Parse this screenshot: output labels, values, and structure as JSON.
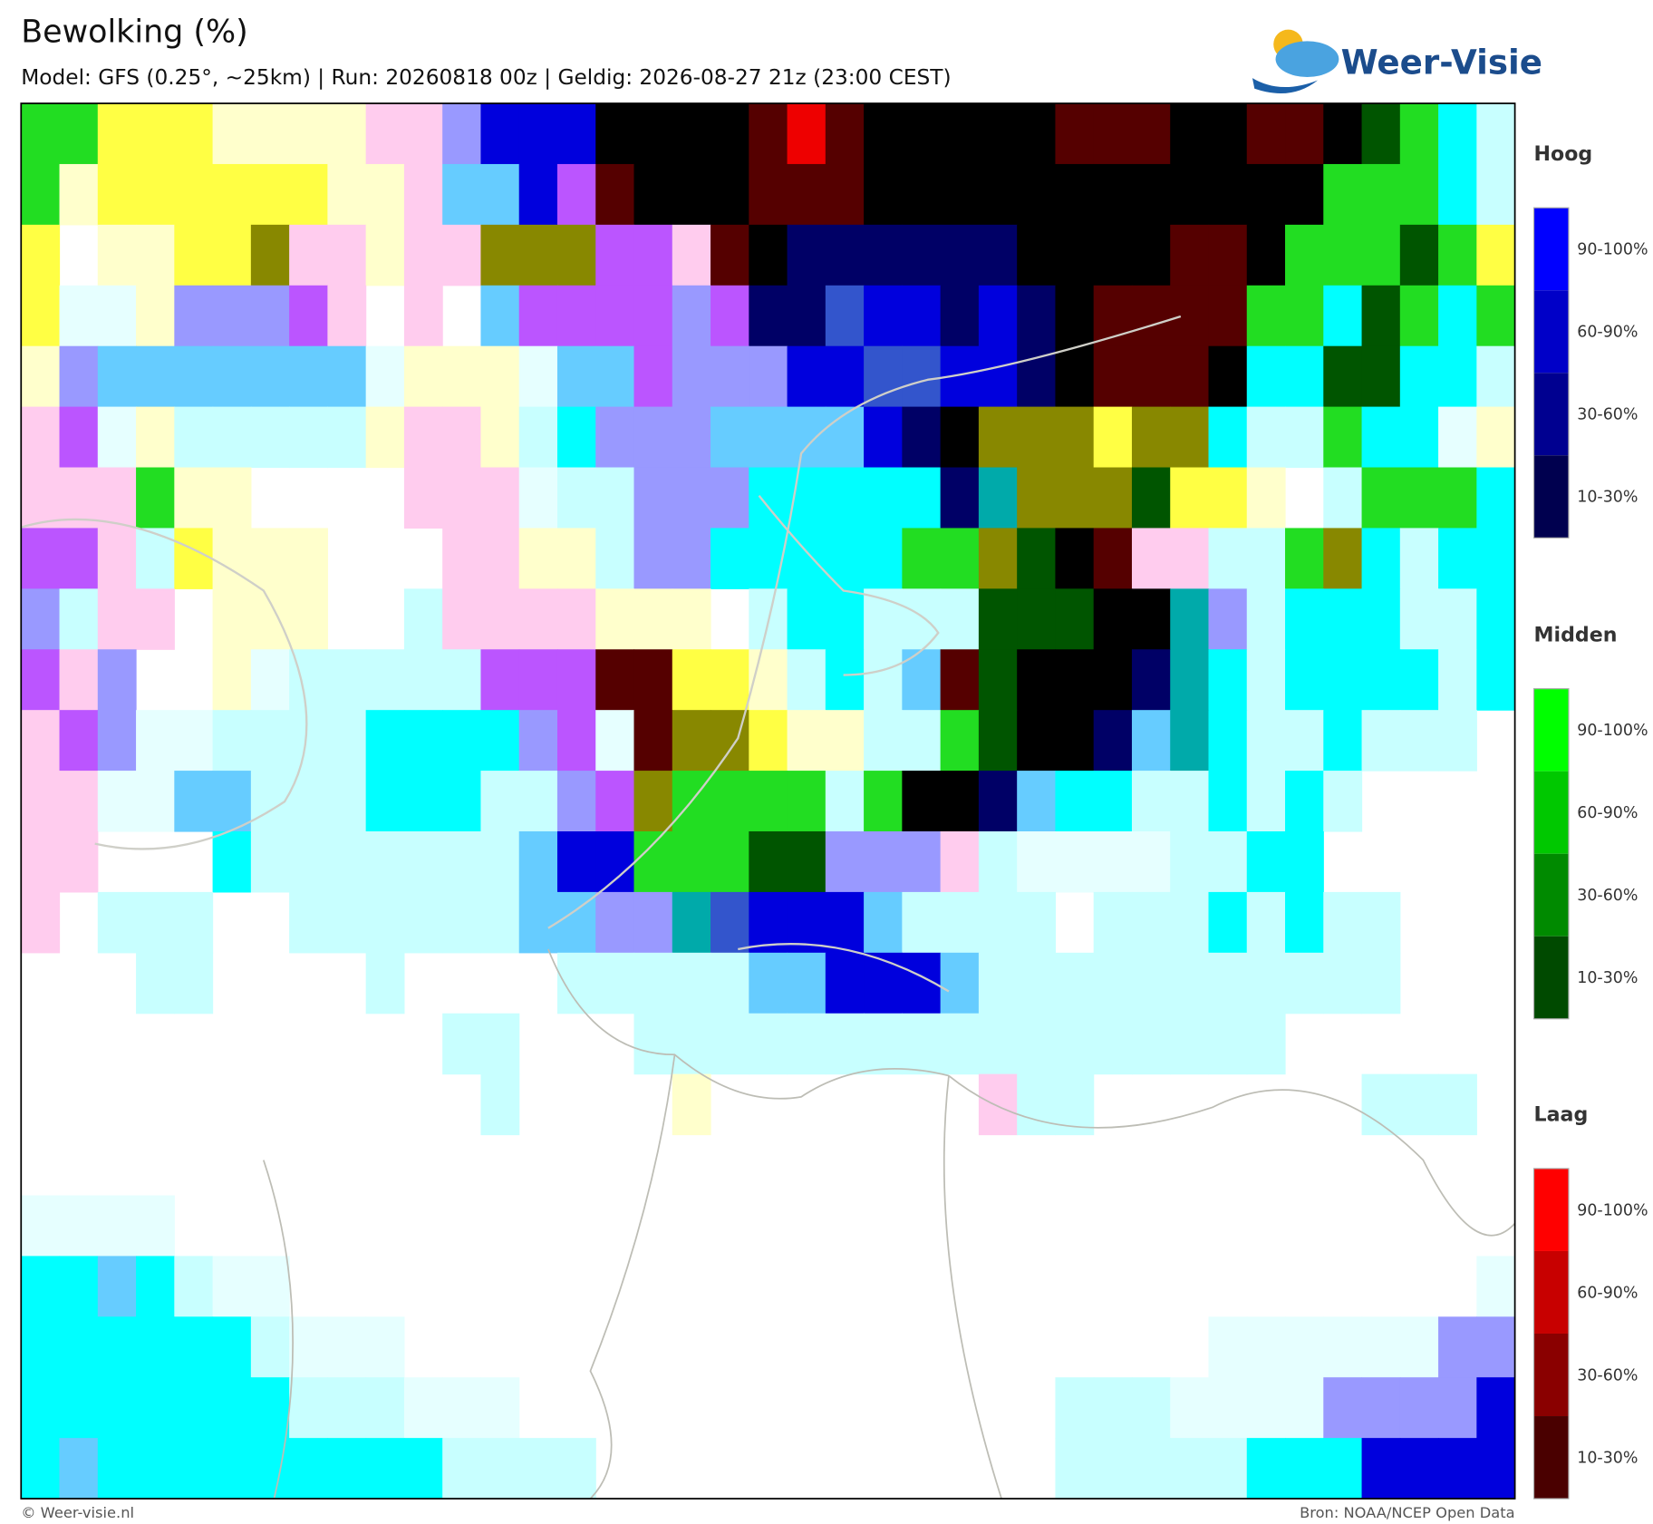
{
  "header": {
    "title": "Bewolking (%)",
    "subtitle": "Model: GFS (0.25°, ~25km)  |  Run: 20260818 00z  |  Geldig: 2026-08-27 21z (23:00 CEST)",
    "logo": "Weer-Visie"
  },
  "legend": [
    {
      "title": "Hoog",
      "bins": [
        {
          "label": "90-100%",
          "color": "#0000ff"
        },
        {
          "label": "60-90%",
          "color": "#0000c8"
        },
        {
          "label": "30-60%",
          "color": "#000090"
        },
        {
          "label": "10-30%",
          "color": "#00004f"
        }
      ]
    },
    {
      "title": "Midden",
      "bins": [
        {
          "label": "90-100%",
          "color": "#00ff00"
        },
        {
          "label": "60-90%",
          "color": "#00c800"
        },
        {
          "label": "30-60%",
          "color": "#008a00"
        },
        {
          "label": "10-30%",
          "color": "#004a00"
        }
      ]
    },
    {
      "title": "Laag",
      "bins": [
        {
          "label": "90-100%",
          "color": "#ff0000"
        },
        {
          "label": "60-90%",
          "color": "#c80000"
        },
        {
          "label": "30-60%",
          "color": "#8a0000"
        },
        {
          "label": "10-30%",
          "color": "#4a0000"
        }
      ]
    }
  ],
  "footer": {
    "credit": "© Weer-visie.nl",
    "source": "Bron: NOAA/NCEP Open Data"
  }
}
